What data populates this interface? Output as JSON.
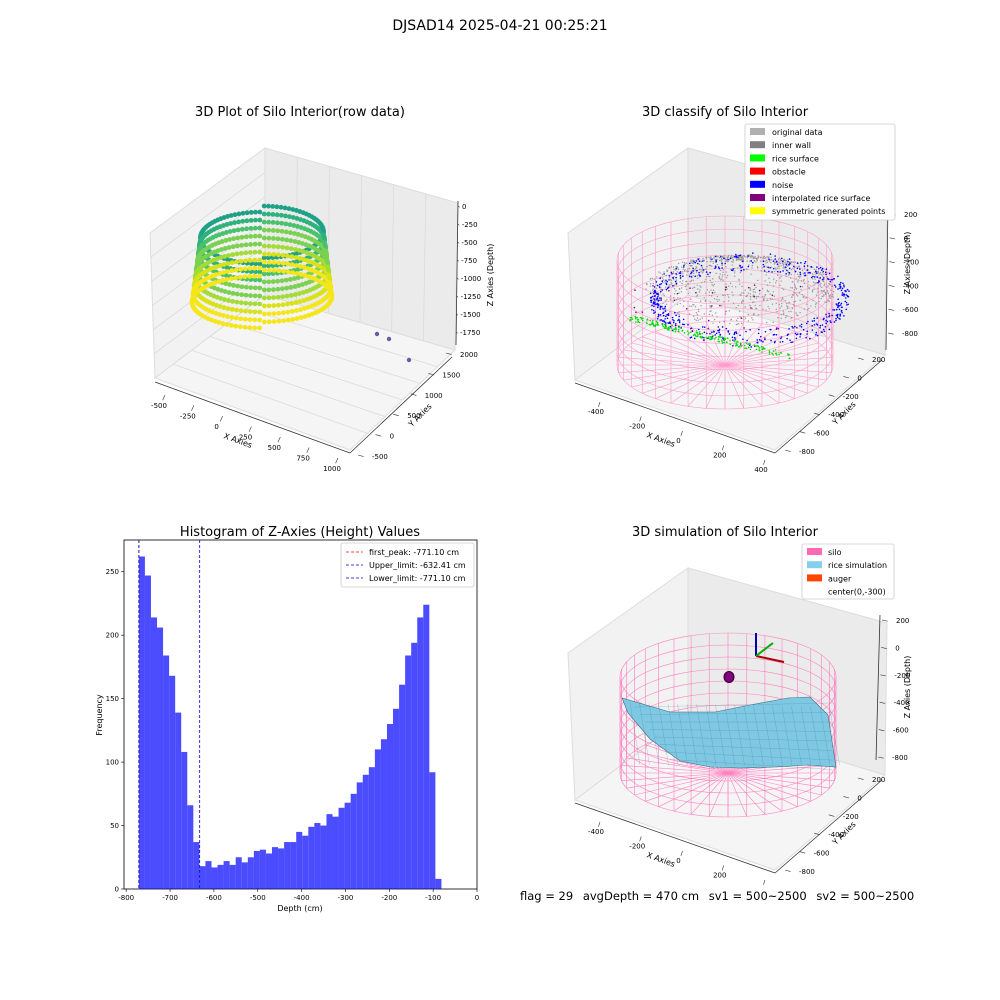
{
  "figure": {
    "suptitle": "DJSAD14 2025-04-21 00:25:21"
  },
  "panels": {
    "raw": {
      "title": "3D Plot of Silo Interior(row data)",
      "xlabel": "X Axies",
      "ylabel": "Y Axies",
      "zlabel": "Z Axies (Depth)",
      "xticks": [
        "-500",
        "-250",
        "0",
        "250",
        "500",
        "750",
        "1000"
      ],
      "yticks": [
        "-500",
        "0",
        "500",
        "1000",
        "1500",
        "2000"
      ],
      "zticks": [
        "0",
        "-250",
        "-500",
        "-750",
        "-1000",
        "-1250",
        "-1500",
        "-1750"
      ]
    },
    "classify": {
      "title": "3D classify of Silo Interior",
      "xlabel": "X Axies",
      "ylabel": "Y Axies",
      "zlabel": "Z Axies (Depth)",
      "xticks": [
        "-400",
        "-200",
        "0",
        "200",
        "400"
      ],
      "yticks": [
        "-800",
        "-600",
        "-400",
        "-200",
        "0",
        "200"
      ],
      "zticks": [
        "200",
        "0",
        "-200",
        "-400",
        "-600",
        "-800"
      ],
      "legend": [
        {
          "label": "original data",
          "color": "#b0b0b0"
        },
        {
          "label": "inner wall",
          "color": "#808080"
        },
        {
          "label": "rice surface",
          "color": "#00ff00"
        },
        {
          "label": "obstacle",
          "color": "#ff0000"
        },
        {
          "label": "noise",
          "color": "#0000ff"
        },
        {
          "label": "interpolated rice surface",
          "color": "#800080"
        },
        {
          "label": "symmetric generated points",
          "color": "#ffff00"
        }
      ]
    },
    "simulation": {
      "title": "3D simulation of Silo Interior",
      "xlabel": "X Axies",
      "ylabel": "Y Axies",
      "zlabel": "Z Axies (Depth)",
      "xticks": [
        "-400",
        "-200",
        "0",
        "200",
        "400"
      ],
      "yticks": [
        "-800",
        "-600",
        "-400",
        "-200",
        "0",
        "200"
      ],
      "zticks": [
        "200",
        "0",
        "-200",
        "-400",
        "-600",
        "-800"
      ],
      "legend": [
        {
          "label": "silo",
          "color": "#ff69b4"
        },
        {
          "label": "rice simulation",
          "color": "#87ceeb"
        },
        {
          "label": "auger",
          "color": "#ff4500"
        },
        {
          "label": "center(0,-300)",
          "color": ""
        }
      ]
    }
  },
  "chart_data": {
    "type": "bar",
    "title": "Histogram of Z-Axies (Height) Values",
    "xlabel": "Depth (cm)",
    "ylabel": "Frequency",
    "xlim": [
      -805,
      0
    ],
    "ylim": [
      0,
      275
    ],
    "xticks": [
      -800,
      -700,
      -600,
      -500,
      -400,
      -300,
      -200,
      -100,
      0
    ],
    "yticks": [
      0,
      50,
      100,
      150,
      200,
      250
    ],
    "bin_start": -771.1,
    "bin_width": 13.8,
    "values": [
      262,
      247,
      214,
      206,
      184,
      168,
      139,
      108,
      66,
      37,
      18,
      22,
      17,
      19,
      22,
      19,
      25,
      21,
      25,
      30,
      31,
      28,
      33,
      32,
      37,
      37,
      45,
      42,
      49,
      52,
      50,
      59,
      57,
      64,
      68,
      75,
      84,
      90,
      96,
      110,
      118,
      130,
      142,
      161,
      184,
      194,
      214,
      224,
      92,
      8
    ],
    "bar_color": "#0000ff",
    "vlines": [
      {
        "label": "first_peak: -771.10 cm",
        "x": -771.1,
        "color": "#ff0000"
      },
      {
        "label": "Upper_limit: -632.41 cm",
        "x": -632.41,
        "color": "#0000cc"
      },
      {
        "label": "Lower_limit: -771.10 cm",
        "x": -771.1,
        "color": "#0000cc"
      }
    ],
    "legend_position": "top-right"
  },
  "footer": {
    "flag": "flag = 29",
    "avg_depth": "avgDepth = 470 cm",
    "sv1": "sv1 = 500~2500",
    "sv2": "sv2 = 500~2500"
  }
}
